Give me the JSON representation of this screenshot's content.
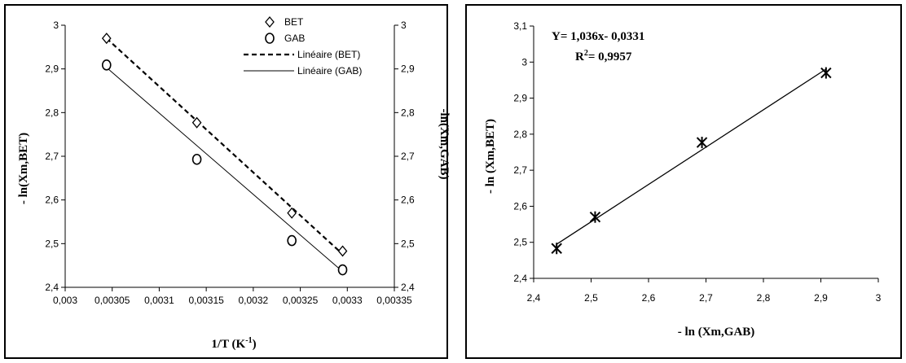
{
  "chart_data": [
    {
      "type": "scatter",
      "xlabel": "1/T (K",
      "xlabel_sup": "-1",
      "xlabel_close": ")",
      "ylabel": "- ln(Xm,BET)",
      "y2label": "-ln(Xm,GAB)",
      "xlim": [
        0.003,
        0.00335
      ],
      "ylim": [
        2.4,
        3
      ],
      "x_ticks": [
        "0,003",
        "0,00305",
        "0,0031",
        "0,00315",
        "0,0032",
        "0,00325",
        "0,0033",
        "0,00335"
      ],
      "y_ticks": [
        "2,4",
        "2,5",
        "2,6",
        "2,7",
        "2,8",
        "2,9",
        "3"
      ],
      "legend_position": "top-right",
      "series": [
        {
          "name": "BET",
          "marker": "diamond",
          "x": [
            0.003044,
            0.00314,
            0.003241,
            0.003295
          ],
          "y": [
            2.97,
            2.777,
            2.57,
            2.483
          ]
        },
        {
          "name": "GAB",
          "marker": "circle",
          "x": [
            0.003044,
            0.00314,
            0.003241,
            0.003295
          ],
          "y": [
            2.909,
            2.693,
            2.507,
            2.44
          ]
        },
        {
          "name": "Linéaire (BET)",
          "style": "dashed",
          "x": [
            0.003044,
            0.003295
          ],
          "y": [
            2.97,
            2.476
          ]
        },
        {
          "name": "Linéaire (GAB)",
          "style": "solid",
          "x": [
            0.003044,
            0.003295
          ],
          "y": [
            2.903,
            2.436
          ]
        }
      ]
    },
    {
      "type": "scatter",
      "xlabel": "- ln (Xm,GAB)",
      "ylabel": "- ln (Xm,BET)",
      "xlim": [
        2.4,
        3
      ],
      "ylim": [
        2.4,
        3.1
      ],
      "x_ticks": [
        "2,4",
        "2,5",
        "2,6",
        "2,7",
        "2,8",
        "2,9",
        "3"
      ],
      "y_ticks": [
        "2,4",
        "2,5",
        "2,6",
        "2,7",
        "2,8",
        "2,9",
        "3",
        "3,1"
      ],
      "equation": "Y= 1,036x- 0,0331",
      "r2_label": "R",
      "r2_sup": "2",
      "r2_value": "= 0,9957",
      "series": [
        {
          "marker": "asterisk",
          "x": [
            2.44,
            2.507,
            2.693,
            2.909
          ],
          "y": [
            2.483,
            2.57,
            2.777,
            2.97
          ]
        },
        {
          "style": "solid",
          "x": [
            2.44,
            2.909
          ],
          "y": [
            2.4947,
            2.9806
          ]
        }
      ]
    }
  ]
}
